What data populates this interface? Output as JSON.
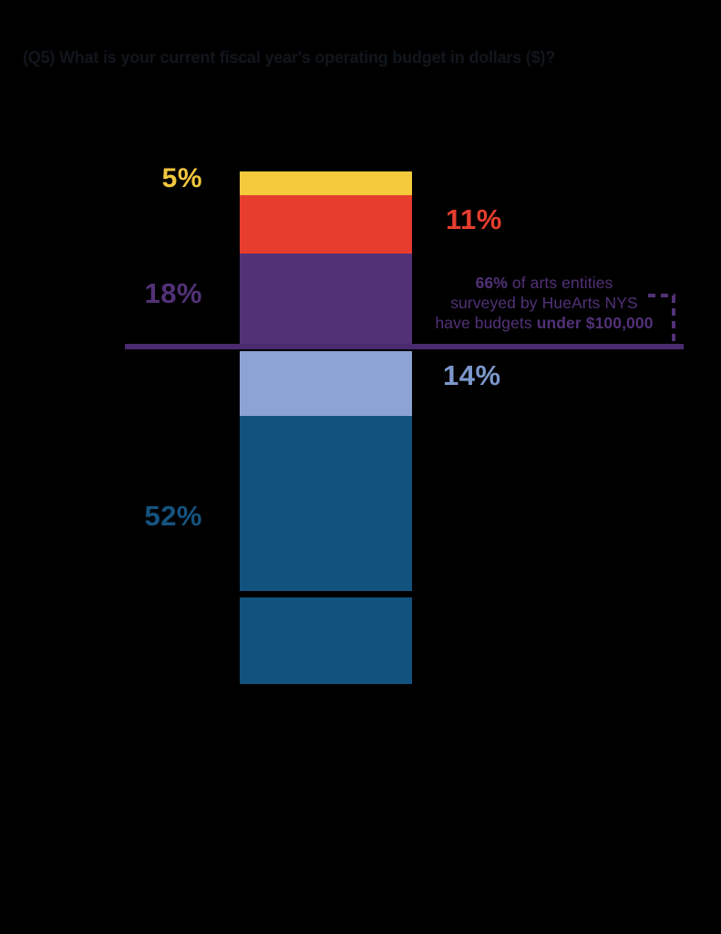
{
  "header": {
    "title": "(Q5) What is your current fiscal year's operating budget in dollars ($)?"
  },
  "chart_data": {
    "type": "bar",
    "stacked": true,
    "title": "(Q5) What is your current fiscal year's operating budget in dollars ($)?",
    "unit": "percent",
    "values": [
      5,
      11,
      18,
      14,
      52
    ],
    "segments": [
      {
        "label": "5%",
        "value": 5,
        "color": "#f5c93c",
        "label_color": "#f2c63e",
        "label_side": "left"
      },
      {
        "label": "11%",
        "value": 11,
        "color": "#e63d2e",
        "label_color": "#e63d2e",
        "label_side": "right"
      },
      {
        "label": "18%",
        "value": 18,
        "color": "#523177",
        "label_color": "#523177",
        "label_side": "left"
      },
      {
        "label": "14%",
        "value": 14,
        "color": "#8ca3d4",
        "label_color": "#7b97cb",
        "label_side": "right"
      },
      {
        "label": "52%",
        "value": 52,
        "color": "#11527e",
        "label_color": "#15537e",
        "label_side": "left"
      }
    ],
    "divider_line": {
      "color": "#4a2b70",
      "position": "between 18% segment and 14% segment"
    },
    "annotation": {
      "text": "66% of arts entities surveyed by HueArts NYS have budgets under $100,000",
      "color": "#523177",
      "pct_bold": "66%",
      "line1_rest": " of arts entities",
      "line2": "surveyed by HueArts NYS",
      "line3_pre": "have budgets ",
      "line3_bold": "under $100,000"
    }
  }
}
